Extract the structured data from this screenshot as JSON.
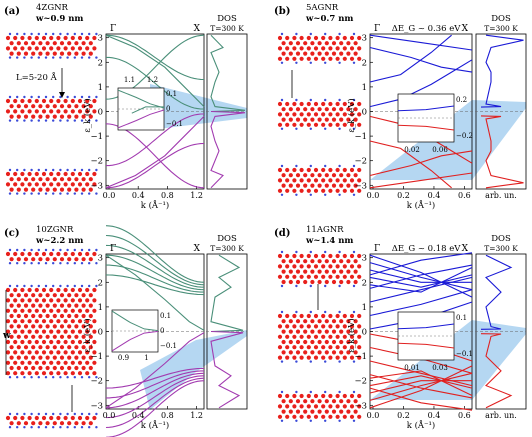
{
  "panels": [
    {
      "label": "(a)",
      "ribbon": "4ZGNR",
      "width_prefix": "w~",
      "width_value": "0.9 nm",
      "extra_annotation": "L=5-20 Å",
      "gap_label": "",
      "gamma": "Γ",
      "x_point": "X",
      "dos_title": "DOS",
      "temperature": "T=300 K",
      "yticks": [
        "3",
        "2",
        "1",
        "0",
        "−1",
        "−2",
        "−3"
      ],
      "xticks": [
        "0.0",
        "0.4",
        "0.8",
        "1.2"
      ],
      "xlabel": "k (Å⁻¹)",
      "ylabel": "ε_k (eV)",
      "dos_xlabel": "",
      "inset_xticks": [
        "1.1",
        "1.2"
      ],
      "inset_yticks": [
        "0.1",
        "0",
        "−0.1"
      ],
      "band_color_upper": "#4a8f79",
      "band_color_lower": "#a23bb0"
    },
    {
      "label": "(b)",
      "ribbon": "5AGNR",
      "width_prefix": "w~",
      "width_value": "0.7 nm",
      "extra_annotation": "",
      "gap_label": "ΔE_G ~ 0.36 eV",
      "gamma": "Γ",
      "x_point": "X",
      "dos_title": "DOS",
      "temperature": "T=300 K",
      "yticks": [
        "3",
        "2",
        "1",
        "0",
        "−1",
        "−2",
        "−3"
      ],
      "xticks": [
        "0.0",
        "0.2",
        "0.4",
        "0.6"
      ],
      "xlabel": "k (Å⁻¹)",
      "ylabel": "ε_k (eV)",
      "dos_xlabel": "arb. un.",
      "inset_xticks": [
        "0.02",
        "0.06"
      ],
      "inset_yticks": [
        "0.2",
        "−0.2"
      ],
      "band_color_upper": "#1a1ad6",
      "band_color_lower": "#e02020"
    },
    {
      "label": "(c)",
      "ribbon": "10ZGNR",
      "width_prefix": "w~",
      "width_value": "2.2 nm",
      "extra_annotation": "w",
      "gap_label": "",
      "gamma": "Γ",
      "x_point": "X",
      "dos_title": "DOS",
      "temperature": "T=300 K",
      "yticks": [
        "3",
        "2",
        "1",
        "0",
        "−1",
        "−2",
        "−3"
      ],
      "xticks": [
        "0.0",
        "0.4",
        "0.8",
        "1.2"
      ],
      "xlabel": "k (Å⁻¹)",
      "ylabel": "ε_k (eV)",
      "dos_xlabel": "",
      "inset_xticks": [
        "0.9",
        "1"
      ],
      "inset_yticks": [
        "0.1",
        "0",
        "−0.1"
      ],
      "band_color_upper": "#4a8f79",
      "band_color_lower": "#a23bb0"
    },
    {
      "label": "(d)",
      "ribbon": "11AGNR",
      "width_prefix": "w~",
      "width_value": "1.4 nm",
      "extra_annotation": "",
      "gap_label": "ΔE_G ~ 0.18 eV",
      "gamma": "Γ",
      "x_point": "X",
      "dos_title": "DOS",
      "temperature": "T=300 K",
      "yticks": [
        "3",
        "2",
        "1",
        "0",
        "−1",
        "−2",
        "−3"
      ],
      "xticks": [
        "0.0",
        "0.2",
        "0.4",
        "0.6"
      ],
      "xlabel": "k (Å⁻¹)",
      "ylabel": "ε_k (eV)",
      "dos_xlabel": "arb. un.",
      "inset_xticks": [
        "0.01",
        "0.03"
      ],
      "inset_yticks": [
        "0.1",
        "−0.1"
      ],
      "band_color_upper": "#1a1ad6",
      "band_color_lower": "#e02020"
    }
  ],
  "colors": {
    "atom_carbon": "#e8201c",
    "atom_hydrogen": "#3a4ad8",
    "highlight": "#9cc9ee"
  }
}
